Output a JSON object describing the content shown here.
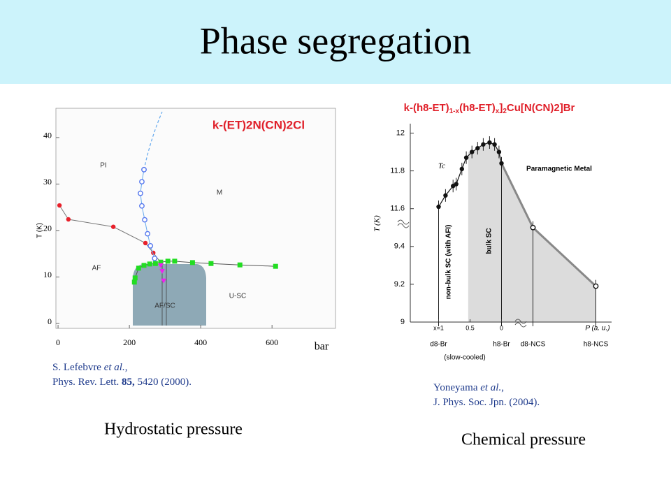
{
  "title": "Phase segregation",
  "left": {
    "reference": [
      [
        "S. Lefebvre ",
        "et al.",
        ","
      ],
      [
        "Phys. Rev. Lett. ",
        "85,",
        " 5420 (2000)."
      ]
    ],
    "caption": "Hydrostatic pressure"
  },
  "right": {
    "reference": [
      [
        "Yoneyama ",
        "et al.",
        ","
      ],
      [
        "J. Phys. Soc. Jpn. (2004)."
      ]
    ],
    "caption": "Chemical pressure"
  },
  "chart_data": [
    {
      "type": "scatter",
      "title": "k-(ET)2N(CN)2Cl",
      "xlabel": "bar",
      "ylabel": "T (K)",
      "xlim": [
        -6,
        778
      ],
      "ylim": [
        -1.05,
        46.3
      ],
      "xticks": [
        0,
        200,
        400,
        600
      ],
      "yticks": [
        0,
        10,
        20,
        30,
        40
      ],
      "annotations": [
        "PI",
        "M",
        "AF",
        "AF/SC",
        "U-SC"
      ],
      "series": [
        {
          "color": "#e8202a",
          "marker": "filled",
          "line": "#777777",
          "x": [
            4,
            29,
            155,
            245,
            267,
            288
          ],
          "values": [
            25.4,
            22.4,
            20.8,
            17.3,
            15.2,
            13.1
          ]
        },
        {
          "color": "#22dd22",
          "marker": "square",
          "line": "#555555",
          "x": [
            214,
            216,
            226,
            241,
            257,
            273,
            288,
            308,
            327,
            377,
            429,
            510,
            610
          ],
          "values": [
            8.9,
            9.8,
            11.9,
            12.5,
            12.8,
            12.9,
            13.2,
            13.4,
            13.4,
            13.1,
            12.9,
            12.6,
            12.3
          ]
        },
        {
          "color": "#5577ee",
          "marker": "open",
          "line": "#66aaee",
          "x": [
            241,
            235,
            231,
            235,
            243,
            251,
            259,
            271
          ],
          "values": [
            33.1,
            30.5,
            28.0,
            25.3,
            22.3,
            19.3,
            16.7,
            14.0
          ]
        },
        {
          "color": "#ee22ee",
          "marker": "triangle",
          "x": [
            288,
            292,
            296
          ],
          "values": [
            12.5,
            11.3,
            9.2
          ]
        }
      ]
    },
    {
      "type": "line",
      "title": [
        "k-(h8-ET)",
        "1-x",
        "(h8-ET)",
        "x",
        "]",
        "2",
        "Cu[N(CN)2]Br"
      ],
      "xlabel": "P (a. u.)",
      "ylabel": "T (K)",
      "xlim": [
        -0.45,
        2.75
      ],
      "ylim": [
        9,
        12.05
      ],
      "xticks": [
        {
          "value": 0,
          "label": "d8-Br"
        },
        {
          "value": 1,
          "label": "h8-Br"
        },
        {
          "value": 1.5,
          "label": "d8-NCS"
        },
        {
          "value": 2.5,
          "label": "h8-NCS"
        }
      ],
      "xticks2": [
        {
          "value": 0,
          "label": "x=1"
        },
        0.5,
        {
          "value": 1,
          "label": "0"
        }
      ],
      "xnote": "(slow-cooled)",
      "yticks": [
        9,
        9.2,
        9.4,
        11.6,
        11.8,
        12
      ],
      "annotations": [
        "Paramagnetic Metal",
        "Tc",
        "non-bulk SC (with AFI)",
        "bulk SC"
      ],
      "series": [
        {
          "color": "#111111",
          "marker": "filled",
          "line": "#111111",
          "x": [
            0,
            0.11,
            0.23,
            0.28,
            0.37,
            0.44,
            0.53,
            0.62,
            0.71,
            0.81,
            0.89,
            0.96,
            1
          ],
          "values": [
            11.61,
            11.67,
            11.72,
            11.73,
            11.81,
            11.87,
            11.9,
            11.92,
            11.94,
            11.95,
            11.94,
            11.9,
            11.84
          ]
        },
        {
          "color": "#111111",
          "marker": "open",
          "line": "#888888",
          "x": [
            1.5,
            2.5
          ],
          "values": [
            10.5,
            9.19
          ]
        }
      ]
    }
  ]
}
